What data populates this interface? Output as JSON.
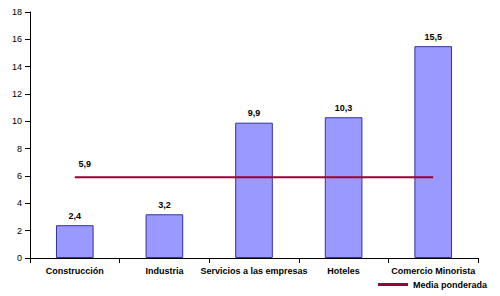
{
  "chart_data": {
    "type": "bar",
    "categories": [
      "Construcción",
      "Industria",
      "Servicios a las empresas",
      "Hoteles",
      "Comercio Minorista"
    ],
    "series": [
      {
        "type": "bar",
        "color": "#9999ff",
        "values": [
          2.4,
          3.2,
          9.9,
          10.3,
          15.5
        ],
        "value_labels": [
          "2,4",
          "3,2",
          "9,9",
          "10,3",
          "15,5"
        ]
      },
      {
        "name": "Media ponderada",
        "type": "line",
        "color": "#990033",
        "values": [
          5.9,
          5.9,
          5.9,
          5.9,
          5.9
        ],
        "value_labels": [
          "5,9",
          null,
          null,
          null,
          null
        ]
      }
    ],
    "ylim": [
      0,
      18
    ],
    "yticks": [
      0,
      2,
      4,
      6,
      8,
      10,
      12,
      14,
      16,
      18
    ],
    "grid": false,
    "legend": "bottom right",
    "data_labels": true
  }
}
